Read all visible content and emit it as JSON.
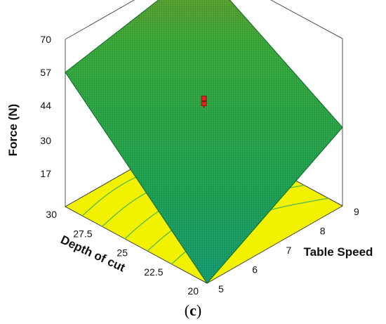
{
  "chart_data": {
    "type": "surface",
    "title": "",
    "xlabel": "Depth of cut",
    "ylabel": "Table Speed",
    "zlabel": "Force (N)",
    "x_ticks": [
      "30",
      "27.5",
      "25",
      "22.5",
      "20"
    ],
    "y_ticks": [
      "5",
      "6",
      "7",
      "8",
      "9"
    ],
    "z_ticks": [
      "17",
      "30",
      "44",
      "57",
      "70"
    ],
    "xlim": [
      20,
      30
    ],
    "ylim": [
      5,
      9
    ],
    "zlim": [
      4,
      70
    ],
    "surface_corners": [
      {
        "depth": 30,
        "speed": 5,
        "force": 57
      },
      {
        "depth": 30,
        "speed": 9,
        "force": 68
      },
      {
        "depth": 20,
        "speed": 5,
        "force": 4
      },
      {
        "depth": 20,
        "speed": 9,
        "force": 35
      }
    ],
    "design_point": {
      "depth": 25,
      "speed": 7,
      "force": 45
    },
    "surface_color": "#2ea84a",
    "floor_color": "#f2f200",
    "point_color": "#e52020",
    "grid": true
  },
  "caption": {
    "open": "(",
    "letter": "c",
    "close": ")"
  }
}
